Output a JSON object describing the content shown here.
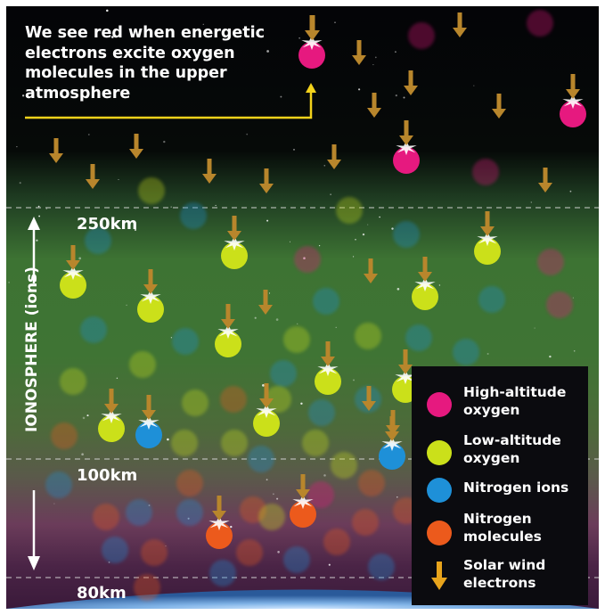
{
  "caption": "We see red when energetic electrons excite oxygen molecules in the upper atmosphere",
  "altitude_labels": {
    "top": "250km",
    "middle": "100km",
    "bottom": "80km"
  },
  "ionosphere_label": "IONOSPHERE (ions)",
  "legend": [
    {
      "label": "High-altitude oxygen",
      "color": "#e6197f",
      "icon": "pink-dot-icon"
    },
    {
      "label": "Low-altitude oxygen",
      "color": "#cbe01a",
      "icon": "yellow-green-dot-icon"
    },
    {
      "label": "Nitrogen ions",
      "color": "#1e90d8",
      "icon": "blue-dot-icon"
    },
    {
      "label": "Nitrogen molecules",
      "color": "#ec5a1c",
      "icon": "orange-dot-icon"
    },
    {
      "label": "Solar wind electrons",
      "color": "#e8a41c",
      "icon": "arrow-down-icon"
    }
  ],
  "colors": {
    "sky_top": "#050508",
    "aurora_green": "#3f7a37",
    "lower_purple": "#4a2540",
    "caption_line": "#f3d21b",
    "electron_arrow": "#b8862c"
  }
}
